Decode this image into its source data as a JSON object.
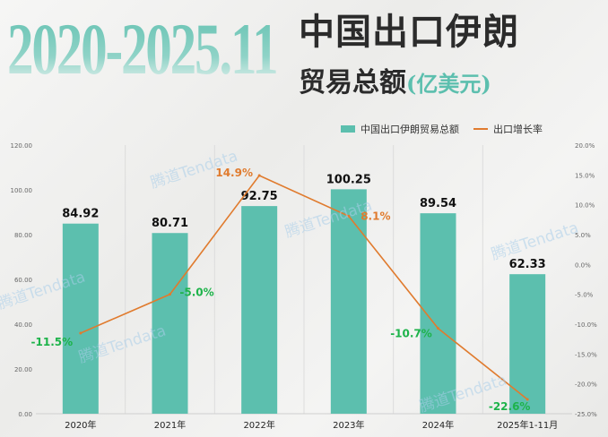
{
  "title": {
    "years": "2020-2025.11",
    "line1": "中国出口伊朗",
    "line2": "贸易总额",
    "unit": "(亿美元)"
  },
  "watermark": "腾道Tendata",
  "chart_data": {
    "type": "bar+line",
    "categories": [
      "2020年",
      "2021年",
      "2022年",
      "2023年",
      "2024年",
      "2025年1-11月"
    ],
    "series": [
      {
        "name": "中国出口伊朗贸易总额",
        "type": "bar",
        "axis": "left",
        "color": "#5cbfae",
        "values": [
          84.92,
          80.71,
          92.75,
          100.25,
          89.54,
          62.33
        ],
        "labels": [
          "84.92",
          "80.71",
          "92.75",
          "100.25",
          "89.54",
          "62.33"
        ]
      },
      {
        "name": "出口增长率",
        "type": "line",
        "axis": "right",
        "color": "#e07b2e",
        "values": [
          -11.5,
          -5.0,
          14.9,
          8.1,
          -10.7,
          -22.6
        ],
        "labels": [
          "-11.5%",
          "-5.0%",
          "14.9%",
          "8.1%",
          "-10.7%",
          "-22.6%"
        ]
      }
    ],
    "y_left": {
      "range": [
        0,
        120
      ],
      "ticks": [
        "0.00",
        "20.00",
        "40.00",
        "60.00",
        "80.00",
        "100.00",
        "120.00"
      ]
    },
    "y_right": {
      "range": [
        -25,
        20
      ],
      "ticks": [
        "-25.0%",
        "-20.0%",
        "-15.0%",
        "-10.0%",
        "-5.0%",
        "0.0%",
        "5.0%",
        "10.0%",
        "15.0%",
        "20.0%"
      ]
    },
    "positive_label_color": "#e07b2e",
    "negative_label_color": "#1db34a",
    "legend": "top-right",
    "grid": "vertical"
  }
}
